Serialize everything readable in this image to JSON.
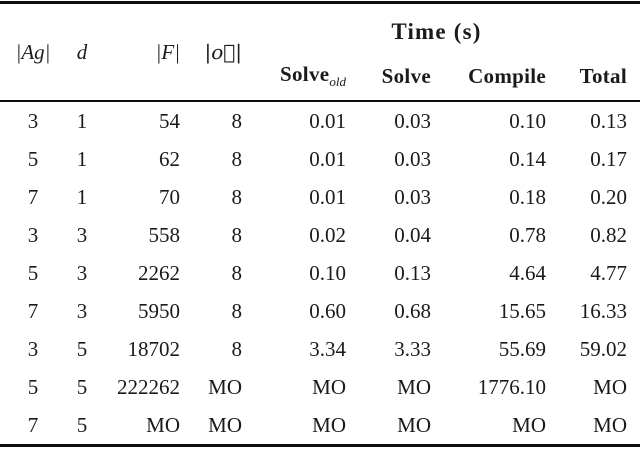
{
  "table": {
    "header": {
      "ag": "|Ag|",
      "d": "d",
      "f": "|F|",
      "o_vec": "|o⃗|",
      "time_group": "Time (s)",
      "solve_old_base": "Solve",
      "solve_old_sub": "old",
      "solve": "Solve",
      "compile": "Compile",
      "total": "Total"
    },
    "rows": [
      [
        "3",
        "1",
        "54",
        "8",
        "0.01",
        "0.03",
        "0.10",
        "0.13"
      ],
      [
        "5",
        "1",
        "62",
        "8",
        "0.01",
        "0.03",
        "0.14",
        "0.17"
      ],
      [
        "7",
        "1",
        "70",
        "8",
        "0.01",
        "0.03",
        "0.18",
        "0.20"
      ],
      [
        "3",
        "3",
        "558",
        "8",
        "0.02",
        "0.04",
        "0.78",
        "0.82"
      ],
      [
        "5",
        "3",
        "2262",
        "8",
        "0.10",
        "0.13",
        "4.64",
        "4.77"
      ],
      [
        "7",
        "3",
        "5950",
        "8",
        "0.60",
        "0.68",
        "15.65",
        "16.33"
      ],
      [
        "3",
        "5",
        "18702",
        "8",
        "3.34",
        "3.33",
        "55.69",
        "59.02"
      ],
      [
        "5",
        "5",
        "222262",
        "MO",
        "MO",
        "MO",
        "1776.10",
        "MO"
      ],
      [
        "7",
        "5",
        "MO",
        "MO",
        "MO",
        "MO",
        "MO",
        "MO"
      ]
    ]
  }
}
